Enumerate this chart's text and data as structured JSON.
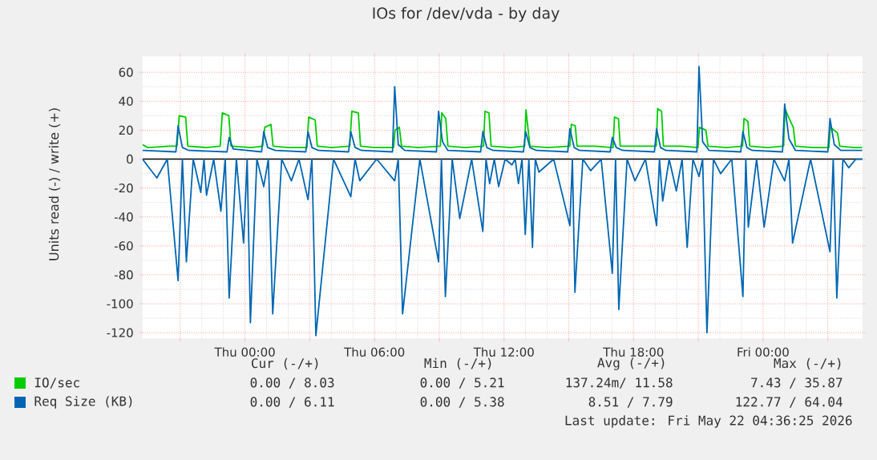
{
  "chart_data": {
    "type": "line",
    "title": "IOs for /dev/vda - by day",
    "ylabel": "Units read (-) / write (+)",
    "xlim": [
      "2026-05-20T19:15",
      "2026-05-22T04:36"
    ],
    "ylim": [
      -124,
      71
    ],
    "xticks": [
      {
        "value": "2026-05-20T21:00",
        "label": null
      },
      {
        "value": "2026-05-21T00:00",
        "label": "Thu 00:00"
      },
      {
        "value": "2026-05-21T03:00",
        "label": null
      },
      {
        "value": "2026-05-21T06:00",
        "label": "Thu 06:00"
      },
      {
        "value": "2026-05-21T09:00",
        "label": null
      },
      {
        "value": "2026-05-21T12:00",
        "label": "Thu 12:00"
      },
      {
        "value": "2026-05-21T15:00",
        "label": null
      },
      {
        "value": "2026-05-21T18:00",
        "label": "Thu 18:00"
      },
      {
        "value": "2026-05-21T21:00",
        "label": null
      },
      {
        "value": "2026-05-22T00:00",
        "label": "Fri 00:00"
      },
      {
        "value": "2026-05-22T03:00",
        "label": null
      }
    ],
    "yticks": [
      -120,
      -100,
      -80,
      -60,
      -40,
      -20,
      0,
      20,
      40,
      60
    ],
    "grid": true,
    "legend": "bottom",
    "marker": "none",
    "line_style": "solid",
    "ref_lines": [
      {
        "axis": "y",
        "value": 0,
        "color": "#000000"
      }
    ],
    "series": [
      {
        "name": "IO/sec",
        "color": "#00cc00",
        "x": [
          "2026-05-20T19:15",
          "2026-05-20T19:30",
          "2026-05-20T20:30",
          "2026-05-20T20:51",
          "2026-05-20T20:57",
          "2026-05-20T21:15",
          "2026-05-20T21:21",
          "2026-05-20T22:12",
          "2026-05-20T22:51",
          "2026-05-20T22:57",
          "2026-05-20T23:15",
          "2026-05-20T23:21",
          "2026-05-21T00:18",
          "2026-05-21T00:49",
          "2026-05-21T00:55",
          "2026-05-21T01:12",
          "2026-05-21T01:18",
          "2026-05-21T02:00",
          "2026-05-21T02:52",
          "2026-05-21T02:57",
          "2026-05-21T03:15",
          "2026-05-21T03:21",
          "2026-05-21T04:00",
          "2026-05-21T04:51",
          "2026-05-21T04:57",
          "2026-05-21T05:15",
          "2026-05-21T05:21",
          "2026-05-21T06:00",
          "2026-05-21T06:53",
          "2026-05-21T06:57",
          "2026-05-21T07:09",
          "2026-05-21T07:15",
          "2026-05-21T08:00",
          "2026-05-21T09:03",
          "2026-05-21T09:07",
          "2026-05-21T09:18",
          "2026-05-21T09:24",
          "2026-05-21T10:12",
          "2026-05-21T11:03",
          "2026-05-21T11:07",
          "2026-05-21T11:18",
          "2026-05-21T11:24",
          "2026-05-21T12:18",
          "2026-05-21T12:57",
          "2026-05-21T13:01",
          "2026-05-21T13:07",
          "2026-05-21T13:12",
          "2026-05-21T14:00",
          "2026-05-21T15:03",
          "2026-05-21T15:07",
          "2026-05-21T15:18",
          "2026-05-21T15:23",
          "2026-05-21T16:12",
          "2026-05-21T17:03",
          "2026-05-21T17:07",
          "2026-05-21T17:18",
          "2026-05-21T17:23",
          "2026-05-21T18:12",
          "2026-05-21T19:03",
          "2026-05-21T19:07",
          "2026-05-21T19:18",
          "2026-05-21T19:23",
          "2026-05-21T20:12",
          "2026-05-21T20:59",
          "2026-05-21T21:03",
          "2026-05-21T21:21",
          "2026-05-21T21:27",
          "2026-05-21T22:18",
          "2026-05-21T23:03",
          "2026-05-21T23:07",
          "2026-05-21T23:18",
          "2026-05-21T23:23",
          "2026-05-22T00:12",
          "2026-05-22T00:57",
          "2026-05-22T01:01",
          "2026-05-22T01:09",
          "2026-05-22T01:24",
          "2026-05-22T01:30",
          "2026-05-22T02:18",
          "2026-05-22T03:03",
          "2026-05-22T03:07",
          "2026-05-22T03:27",
          "2026-05-22T03:33",
          "2026-05-22T04:12",
          "2026-05-22T04:36"
        ],
        "values": [
          10,
          8,
          9,
          9,
          30,
          29,
          9,
          8,
          9,
          32,
          30,
          9,
          8,
          9,
          22,
          24,
          9,
          8,
          8,
          29,
          27,
          9,
          8,
          9,
          33,
          32,
          9,
          8,
          8,
          20,
          22,
          9,
          8,
          9,
          32,
          28,
          9,
          8,
          9,
          33,
          32,
          9,
          8,
          9,
          34,
          20,
          9,
          8,
          9,
          24,
          23,
          9,
          9,
          8,
          29,
          28,
          9,
          9,
          9,
          35,
          33,
          9,
          9,
          8,
          22,
          20,
          9,
          8,
          9,
          28,
          26,
          9,
          8,
          9,
          35,
          30,
          22,
          9,
          8,
          8,
          22,
          18,
          9,
          8,
          8
        ]
      },
      {
        "color": "#0066b3",
        "x": [
          "2026-05-20T19:15",
          "2026-05-20T19:55",
          "2026-05-20T20:24",
          "2026-05-20T20:54",
          "2026-05-20T21:06",
          "2026-05-20T21:17",
          "2026-05-20T21:36",
          "2026-05-20T21:57",
          "2026-05-20T22:06",
          "2026-05-20T22:13",
          "2026-05-20T22:33",
          "2026-05-20T22:53",
          "2026-05-20T23:05",
          "2026-05-20T23:16",
          "2026-05-20T23:36",
          "2026-05-20T23:56",
          "2026-05-21T00:06",
          "2026-05-21T00:15",
          "2026-05-21T00:33",
          "2026-05-21T00:52",
          "2026-05-21T01:05",
          "2026-05-21T01:17",
          "2026-05-21T01:42",
          "2026-05-21T02:09",
          "2026-05-21T02:30",
          "2026-05-21T02:55",
          "2026-05-21T03:06",
          "2026-05-21T03:17",
          "2026-05-21T04:06",
          "2026-05-21T04:54",
          "2026-05-21T05:06",
          "2026-05-21T05:19",
          "2026-05-21T06:06",
          "2026-05-21T06:56",
          "2026-05-21T07:06",
          "2026-05-21T07:18",
          "2026-05-21T08:06",
          "2026-05-21T08:58",
          "2026-05-21T09:06",
          "2026-05-21T09:17",
          "2026-05-21T09:36",
          "2026-05-21T09:57",
          "2026-05-21T10:30",
          "2026-05-21T11:01",
          "2026-05-21T11:10",
          "2026-05-21T11:20",
          "2026-05-21T11:33",
          "2026-05-21T11:45",
          "2026-05-21T12:03",
          "2026-05-21T12:22",
          "2026-05-21T12:31",
          "2026-05-21T12:40",
          "2026-05-21T12:50",
          "2026-05-21T12:59",
          "2026-05-21T13:09",
          "2026-05-21T13:19",
          "2026-05-21T13:27",
          "2026-05-21T13:37",
          "2026-05-21T14:18",
          "2026-05-21T15:03",
          "2026-05-21T15:10",
          "2026-05-21T15:17",
          "2026-05-21T15:39",
          "2026-05-21T16:01",
          "2026-05-21T16:30",
          "2026-05-21T17:01",
          "2026-05-21T17:10",
          "2026-05-21T17:19",
          "2026-05-21T17:42",
          "2026-05-21T18:04",
          "2026-05-21T18:33",
          "2026-05-21T19:04",
          "2026-05-21T19:12",
          "2026-05-21T19:21",
          "2026-05-21T19:39",
          "2026-05-21T19:59",
          "2026-05-21T20:15",
          "2026-05-21T20:29",
          "2026-05-21T20:45",
          "2026-05-21T21:02",
          "2026-05-21T21:12",
          "2026-05-21T21:24",
          "2026-05-21T21:42",
          "2026-05-21T22:02",
          "2026-05-21T22:33",
          "2026-05-21T23:04",
          "2026-05-21T23:12",
          "2026-05-21T23:19",
          "2026-05-21T23:42",
          "2026-05-22T00:03",
          "2026-05-22T00:30",
          "2026-05-22T01:00",
          "2026-05-22T01:12",
          "2026-05-22T01:22",
          "2026-05-22T02:12",
          "2026-05-22T03:06",
          "2026-05-22T03:15",
          "2026-05-22T03:25",
          "2026-05-22T03:42",
          "2026-05-22T03:58",
          "2026-05-22T04:18",
          "2026-05-22T04:36"
        ],
        "values": [
          0,
          -13,
          0,
          -84,
          0,
          -71,
          0,
          -23,
          0,
          -25,
          0,
          -36,
          0,
          -96,
          0,
          -58,
          0,
          -113,
          0,
          -19,
          0,
          -107,
          0,
          -15,
          0,
          -28,
          0,
          -122,
          0,
          -26,
          0,
          -15,
          0,
          -15,
          0,
          -107,
          0,
          -71,
          0,
          -95,
          0,
          -41,
          0,
          -50,
          0,
          -17,
          0,
          -19,
          0,
          -4,
          0,
          -17,
          0,
          -52,
          0,
          -61,
          0,
          -9,
          0,
          -46,
          0,
          -92,
          0,
          -8,
          0,
          -79,
          0,
          -104,
          0,
          -15,
          0,
          -46,
          0,
          -29,
          0,
          -22,
          0,
          -61,
          0,
          -12,
          0,
          -120,
          0,
          -10,
          0,
          -95,
          0,
          -47,
          0,
          -47,
          0,
          -15,
          0,
          -58,
          0,
          -64,
          0,
          -96,
          0,
          -6,
          0,
          0
        ]
      },
      {
        "name": "Req Size (KB)",
        "color": "#0066b3",
        "x": [
          "2026-05-20T19:15",
          "2026-05-20T20:48",
          "2026-05-20T20:54",
          "2026-05-20T21:06",
          "2026-05-20T21:24",
          "2026-05-20T23:10",
          "2026-05-20T23:16",
          "2026-05-20T23:27",
          "2026-05-21T00:46",
          "2026-05-21T00:52",
          "2026-05-21T01:03",
          "2026-05-21T01:24",
          "2026-05-21T02:49",
          "2026-05-21T02:55",
          "2026-05-21T03:06",
          "2026-05-21T03:24",
          "2026-05-21T04:48",
          "2026-05-21T04:54",
          "2026-05-21T05:06",
          "2026-05-21T05:24",
          "2026-05-21T06:50",
          "2026-05-21T06:56",
          "2026-05-21T07:06",
          "2026-05-21T07:24",
          "2026-05-21T08:52",
          "2026-05-21T08:58",
          "2026-05-21T09:09",
          "2026-05-21T09:24",
          "2026-05-21T10:55",
          "2026-05-21T11:01",
          "2026-05-21T11:12",
          "2026-05-21T11:30",
          "2026-05-21T12:54",
          "2026-05-21T13:00",
          "2026-05-21T13:12",
          "2026-05-21T13:30",
          "2026-05-21T14:57",
          "2026-05-21T15:03",
          "2026-05-21T15:15",
          "2026-05-21T15:30",
          "2026-05-21T16:55",
          "2026-05-21T17:01",
          "2026-05-21T17:12",
          "2026-05-21T17:30",
          "2026-05-21T18:58",
          "2026-05-21T19:04",
          "2026-05-21T19:15",
          "2026-05-21T19:30",
          "2026-05-21T20:56",
          "2026-05-21T21:02",
          "2026-05-21T21:12",
          "2026-05-21T21:30",
          "2026-05-21T22:58",
          "2026-05-21T23:04",
          "2026-05-21T23:15",
          "2026-05-21T23:30",
          "2026-05-22T00:54",
          "2026-05-22T01:00",
          "2026-05-22T01:12",
          "2026-05-22T01:30",
          "2026-05-22T03:00",
          "2026-05-22T03:06",
          "2026-05-22T03:18",
          "2026-05-22T03:36",
          "2026-05-22T04:36"
        ],
        "values": [
          6,
          5,
          23,
          8,
          6,
          5,
          15,
          7,
          5,
          19,
          8,
          6,
          5,
          19,
          8,
          6,
          5,
          19,
          8,
          6,
          5,
          50,
          10,
          6,
          5,
          33,
          12,
          6,
          5,
          19,
          8,
          6,
          5,
          19,
          8,
          6,
          5,
          21,
          8,
          6,
          5,
          15,
          8,
          6,
          5,
          21,
          8,
          6,
          5,
          64,
          12,
          6,
          5,
          19,
          8,
          6,
          5,
          38,
          14,
          6,
          5,
          28,
          10,
          6,
          6
        ]
      }
    ],
    "annotations": [
      "Cur (-/+)",
      "Min (-/+)",
      "Avg (-/+)",
      "Max (-/+)",
      "0.00 /  8.03",
      "0.00 /  5.21",
      "137.24m/ 11.58",
      "7.43 / 35.87",
      "0.00 /  6.11",
      "0.00 /  5.38",
      "8.51 /  7.79",
      "122.77 / 64.04",
      "Last update: Fri May 22 04:36:25 2026"
    ]
  }
}
